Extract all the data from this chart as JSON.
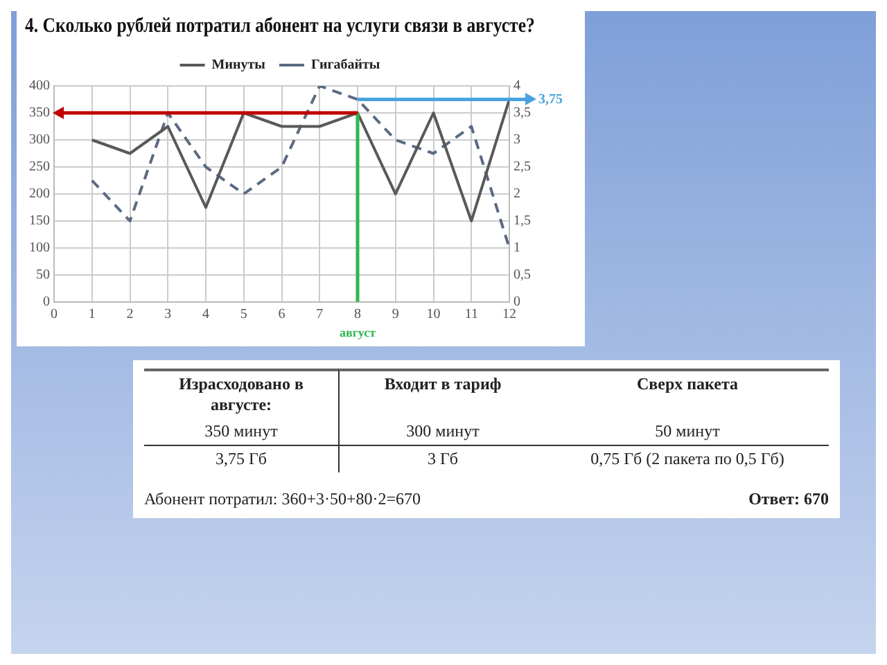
{
  "chart_data": {
    "type": "line",
    "title": "4. Сколько рублей потратил абонент на услуги связи в августе?",
    "x": [
      1,
      2,
      3,
      4,
      5,
      6,
      7,
      8,
      9,
      10,
      11,
      12
    ],
    "series": [
      {
        "name": "Минуты",
        "color": "#595959",
        "line_style": "solid",
        "values": [
          300,
          275,
          325,
          175,
          350,
          325,
          325,
          350,
          200,
          350,
          150,
          375
        ]
      },
      {
        "name": "Гигабайты",
        "color": "#5a6a80",
        "line_style": "dashed",
        "axis": "y2",
        "values": [
          2.25,
          1.5,
          3.5,
          2.5,
          2,
          2.5,
          4,
          3.75,
          3,
          2.75,
          3.25,
          1
        ]
      }
    ],
    "xlim": [
      0,
      12
    ],
    "xticks": [
      0,
      1,
      2,
      3,
      4,
      5,
      6,
      7,
      8,
      9,
      10,
      11,
      12
    ],
    "ylim": [
      0,
      400
    ],
    "yticks": [
      0,
      50,
      100,
      150,
      200,
      250,
      300,
      350,
      400
    ],
    "y2lim": [
      0,
      4
    ],
    "y2ticks": [
      0,
      {
        "value": 0.5,
        "label": "0,5"
      },
      1,
      {
        "value": 1.5,
        "label": "1,5"
      },
      2,
      {
        "value": 2.5,
        "label": "2,5"
      },
      3,
      {
        "value": 3.5,
        "label": "3,5"
      },
      4
    ],
    "ref_lines": [
      {
        "axis": "x",
        "value": 8,
        "label": "август",
        "color": "#2eb84f"
      },
      {
        "axis": "y",
        "value": 350,
        "color": "#c00000"
      },
      {
        "axis": "y2",
        "value": 3.75,
        "label": "3,75",
        "color": "#4aa3df"
      }
    ],
    "grid": true,
    "legend": "top",
    "marker": "none",
    "annotations": [
      "Израсходовано в августе:",
      "Входит в тариф",
      "Сверх пакета",
      "350 минут",
      "300 минут",
      "50 минут",
      "3,75 Гб",
      "3 Гб",
      "0,75 Гб (2 пакета по 0,5 Гб)",
      "Абонент потратил:  360+3·50+80·2=670",
      "Ответ: 670"
    ]
  }
}
